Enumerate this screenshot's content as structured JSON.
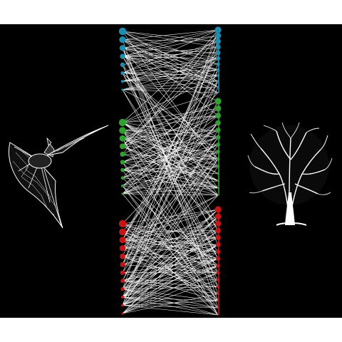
{
  "figure": {
    "background": "#000000",
    "page_background": "#ffffff",
    "line_color": "#ffffff",
    "illustrations": [
      "bat-illustration",
      "tree-illustration"
    ]
  },
  "groups": [
    {
      "name": "blue-group",
      "color": "#1a8fb0",
      "left_node_count": 8,
      "right_node_count": 12
    },
    {
      "name": "green-group",
      "color": "#2fa12f",
      "left_node_count": 10,
      "right_node_count": 14
    },
    {
      "name": "red-group",
      "color": "#c81414",
      "left_node_count": 12,
      "right_node_count": 16
    }
  ]
}
